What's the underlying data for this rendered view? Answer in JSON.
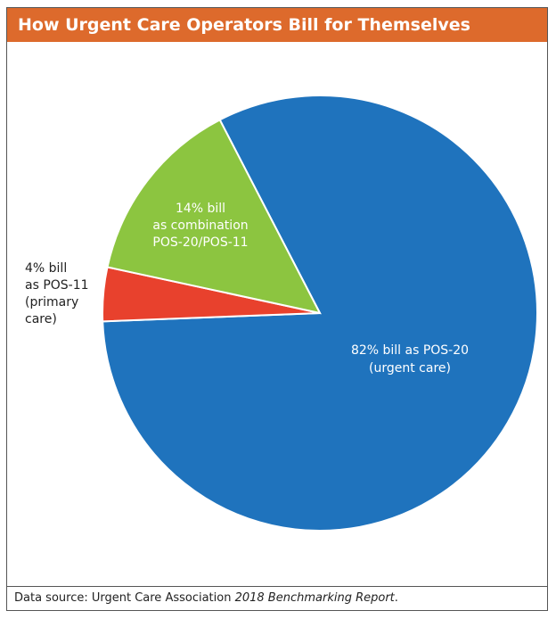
{
  "chart_data": {
    "type": "pie",
    "title": "How Urgent Care Operators Bill for Themselves",
    "categories": [
      "POS-20 (urgent care)",
      "POS-11 (primary care)",
      "combination POS-20/POS-11"
    ],
    "values": [
      82,
      4,
      14
    ],
    "value_labels": [
      [
        "82% bill as POS-20",
        "(urgent care)"
      ],
      [
        "4% bill",
        "as POS-11",
        "(primary",
        "care)"
      ],
      [
        "14% bill",
        "as combination",
        "POS-20/POS-11"
      ]
    ],
    "colors": [
      "#1f73bd",
      "#e8412d",
      "#8cc540"
    ]
  },
  "footer": {
    "prefix": "Data source: Urgent Care Association ",
    "report": "2018 Benchmarking Report",
    "suffix": "."
  }
}
